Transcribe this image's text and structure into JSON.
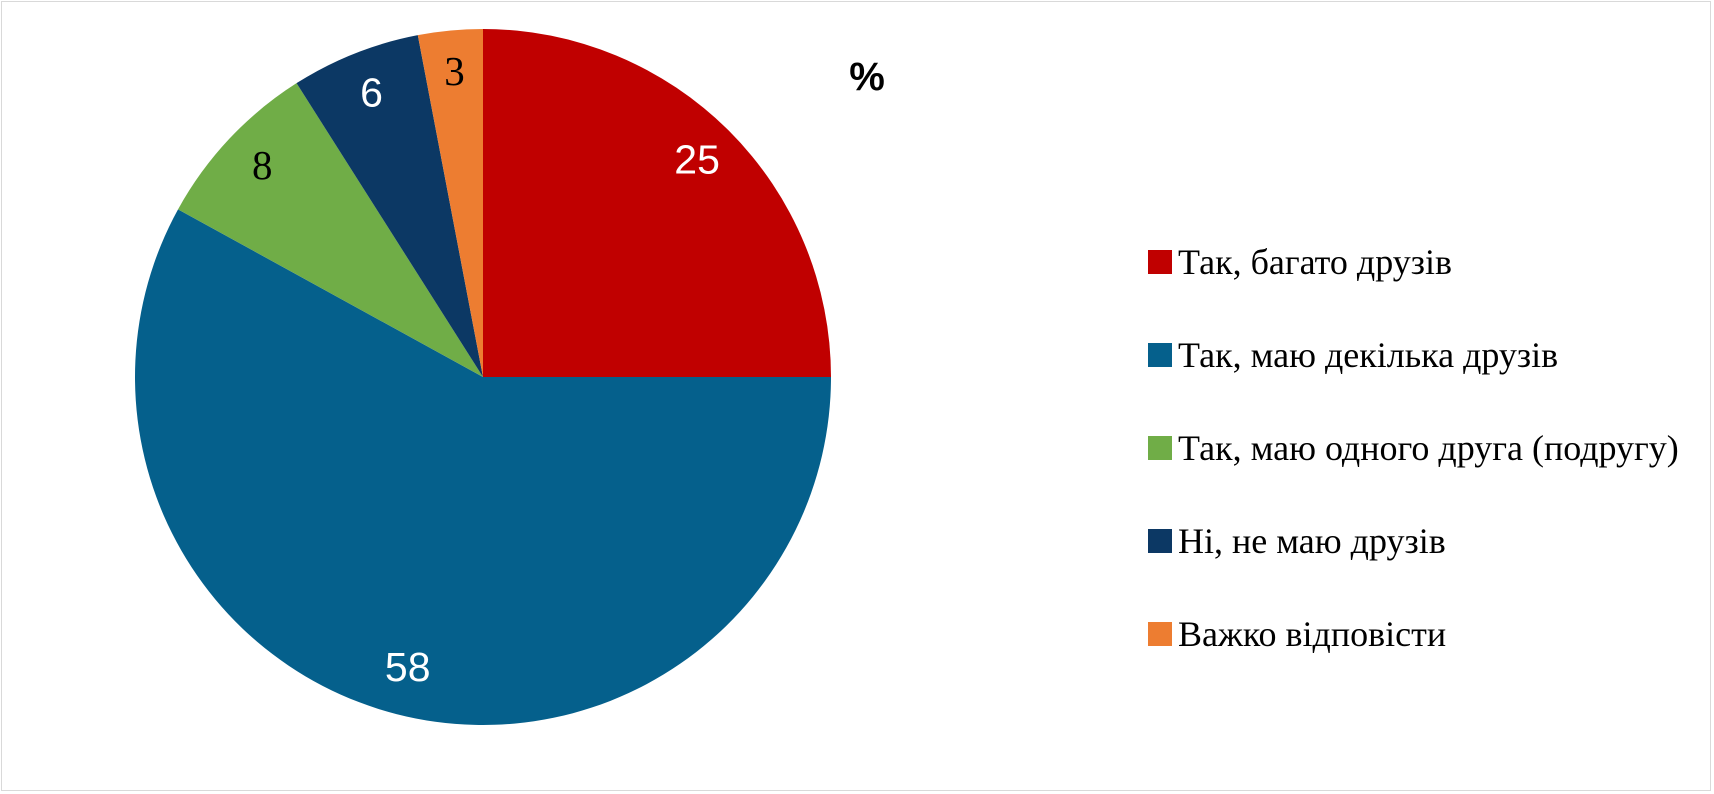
{
  "chart_data": {
    "type": "pie",
    "title": "%",
    "categories": [
      "Так, багато друзів",
      "Так, маю декілька друзів",
      "Так, маю одного друга (подругу)",
      "Ні, не маю друзів",
      "Важко відповісти"
    ],
    "values": [
      25,
      58,
      8,
      6,
      3
    ],
    "colors": [
      "#c00000",
      "#05608c",
      "#70ad47",
      "#0c3864",
      "#ed7d31"
    ],
    "label_colors": [
      "#ffffff",
      "#ffffff",
      "#000000",
      "#ffffff",
      "#000000"
    ],
    "legend": "right"
  }
}
